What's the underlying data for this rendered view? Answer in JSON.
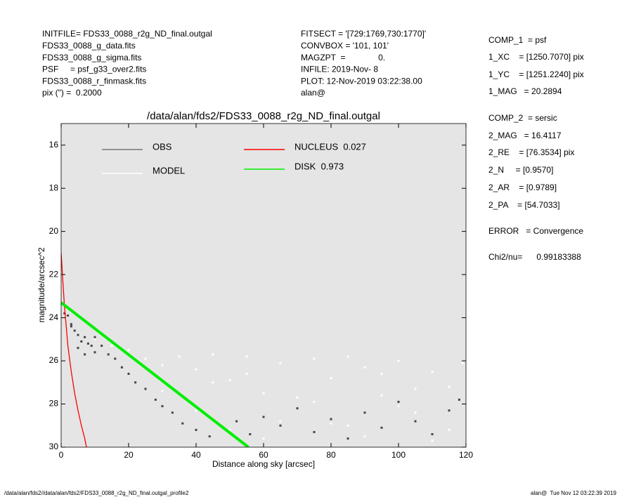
{
  "header": {
    "left": [
      "INITFILE= FDS33_0088_r2g_ND_final.outgal",
      "FDS33_0088_g_data.fits",
      "FDS33_0088_g_sigma.fits",
      "PSF     = psf_g33_over2.fits",
      "FDS33_0088_r_finmask.fits",
      "pix (\") =  0.2000"
    ],
    "middle": [
      "FITSECT = '[729:1769,730:1770]'",
      "CONVBOX = '101, 101'",
      "MAGZPT  =              0.",
      "INFILE: 2019-Nov- 8",
      "PLOT: 12-Nov-2019 03:22:38.00",
      "alan@"
    ],
    "right": [
      "COMP_1  = psf",
      "1_XC    = [1250.7070] pix",
      "1_YC    = [1251.2240] pix",
      "1_MAG   = 20.2894",
      "COMP_2  = sersic",
      "2_MAG   = 16.4117",
      "2_RE    = [76.3534] pix",
      "2_N     = [0.9570]",
      "2_AR    = [0.9789]",
      "2_PA    = [54.7033]",
      "ERROR   = Convergence",
      "Chi2/nu=      0.99183388"
    ]
  },
  "footer": {
    "left": "/data/alan/fds2//data/alan/fds2/FDS33_0088_r2g_ND_final.outgal_profile2",
    "right": "alan@  Tue Nov 12 03:22:39 2019"
  },
  "chart_data": {
    "type": "scatter",
    "title": "/data/alan/fds2/FDS33_0088_r2g_ND_final.outgal",
    "x_label": "Distance along sky [arcsec]",
    "y_label": "magnitude/arcsec^2",
    "xlim": [
      0,
      120
    ],
    "ylim": [
      30,
      15
    ],
    "xticks": [
      0,
      20,
      40,
      60,
      80,
      100,
      120
    ],
    "yticks": [
      16,
      18,
      20,
      22,
      24,
      26,
      28,
      30
    ],
    "series": [
      {
        "name": "OBS",
        "color": "#777777",
        "mode": "markers",
        "x": [
          1,
          2,
          3,
          4,
          5,
          6,
          7,
          8,
          9,
          10,
          12,
          14,
          16,
          18,
          20,
          22,
          25,
          28,
          30,
          33,
          36,
          40,
          44,
          48,
          52,
          56,
          60,
          65,
          70,
          75,
          80,
          85,
          90,
          95,
          100,
          105,
          110,
          115,
          118,
          3,
          5,
          7,
          10,
          15
        ],
        "values": [
          23.8,
          23.9,
          24.3,
          24.6,
          24.8,
          25.1,
          24.9,
          25.2,
          25.3,
          25.6,
          25.3,
          25.7,
          25.9,
          26.3,
          26.6,
          27,
          27.3,
          27.8,
          28.1,
          28.4,
          28.9,
          29.2,
          29.5,
          29.1,
          28.8,
          29.4,
          28.6,
          29.0,
          28.2,
          29.3,
          28.7,
          29.6,
          28.4,
          29.1,
          27.9,
          28.8,
          29.4,
          28.3,
          27.8,
          24.4,
          25.4,
          25.7,
          24.9,
          25.1
        ]
      },
      {
        "name": "MODEL",
        "color": "#ffffff",
        "mode": "markers",
        "x": [
          10,
          15,
          20,
          25,
          30,
          35,
          40,
          45,
          50,
          55,
          60,
          65,
          70,
          75,
          80,
          85,
          90,
          95,
          100,
          105,
          110,
          115,
          119,
          30,
          40,
          50,
          60,
          70,
          80,
          90,
          100,
          110,
          45,
          55,
          65,
          75,
          85,
          95,
          105,
          115
        ],
        "values": [
          25.0,
          25.3,
          25.5,
          25.9,
          26.2,
          25.8,
          26.4,
          25.7,
          26.9,
          25.8,
          27.5,
          26.1,
          28.2,
          25.9,
          26.8,
          29.0,
          26.3,
          27.6,
          26.0,
          28.4,
          26.5,
          27.2,
          26.1,
          27.4,
          28.3,
          29.2,
          29.6,
          27.7,
          28.9,
          29.5,
          28.1,
          29.7,
          27.0,
          26.6,
          28.8,
          27.9,
          25.8,
          26.6,
          27.3,
          29.2
        ]
      },
      {
        "name": "NUCLEUS  0.027",
        "color": "#ff0000",
        "mode": "line",
        "x": [
          0,
          0.5,
          1,
          2,
          3,
          4,
          5,
          6,
          7,
          7.5
        ],
        "values": [
          21,
          22.3,
          23.5,
          25.3,
          26.5,
          27.5,
          28.3,
          29,
          29.6,
          30
        ]
      },
      {
        "name": "DISK  0.973",
        "color": "#00ee00",
        "mode": "line",
        "x": [
          0,
          55.5
        ],
        "values": [
          23.3,
          30
        ]
      }
    ]
  }
}
